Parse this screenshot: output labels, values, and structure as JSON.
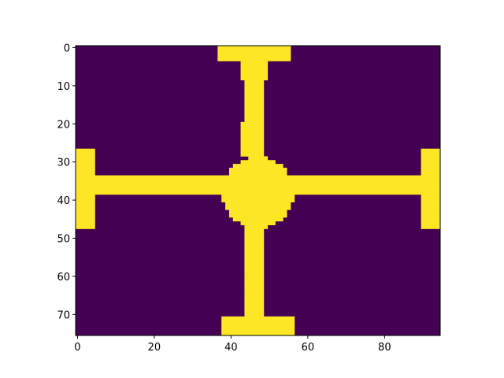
{
  "chart_data": {
    "type": "heatmap",
    "title": "",
    "xlabel": "",
    "ylabel": "",
    "colormap": "viridis",
    "colors": {
      "low": "#440154",
      "high": "#fde725"
    },
    "grid": false,
    "xlim": [
      -0.5,
      94.5
    ],
    "ylim": [
      75.5,
      -0.5
    ],
    "x_ticks": [
      0,
      20,
      40,
      60,
      80
    ],
    "y_ticks": [
      0,
      10,
      20,
      30,
      40,
      50,
      60,
      70
    ],
    "x_tick_labels": [
      "0",
      "20",
      "40",
      "60",
      "80"
    ],
    "y_tick_labels": [
      "0",
      "10",
      "20",
      "30",
      "40",
      "50",
      "60",
      "70"
    ],
    "values": "binary mask (0 = background, 1 = shape); a cross with a central disc, given as the row/column ranges below where value = 1",
    "filled_regions": [
      {
        "rows": [
          0,
          3
        ],
        "cols": [
          37,
          55
        ]
      },
      {
        "rows": [
          3,
          28
        ],
        "cols": [
          44,
          48
        ]
      },
      {
        "rows": [
          4,
          8
        ],
        "cols": [
          43,
          43
        ]
      },
      {
        "rows": [
          4,
          8
        ],
        "cols": [
          49,
          49
        ]
      },
      {
        "rows": [
          20,
          28
        ],
        "cols": [
          43,
          43
        ]
      },
      {
        "rows": [
          34,
          38
        ],
        "cols": [
          4,
          93
        ]
      },
      {
        "rows": [
          27,
          47
        ],
        "cols": [
          0,
          4
        ]
      },
      {
        "rows": [
          27,
          47
        ],
        "cols": [
          90,
          94
        ]
      },
      {
        "rows": [
          35,
          35
        ],
        "cols": [
          8,
          9
        ]
      },
      {
        "rows": [
          35,
          35
        ],
        "cols": [
          33,
          34
        ]
      },
      {
        "rows": [
          35,
          35
        ],
        "cols": [
          62,
          62
        ]
      },
      {
        "rows": [
          35,
          35
        ],
        "cols": [
          72,
          72
        ]
      },
      {
        "disc_center": [
          38,
          47
        ],
        "disc_radius": 9.4
      },
      {
        "rows": [
          47,
          71
        ],
        "cols": [
          44,
          48
        ]
      },
      {
        "rows": [
          71,
          75
        ],
        "cols": [
          38,
          56
        ]
      }
    ]
  }
}
